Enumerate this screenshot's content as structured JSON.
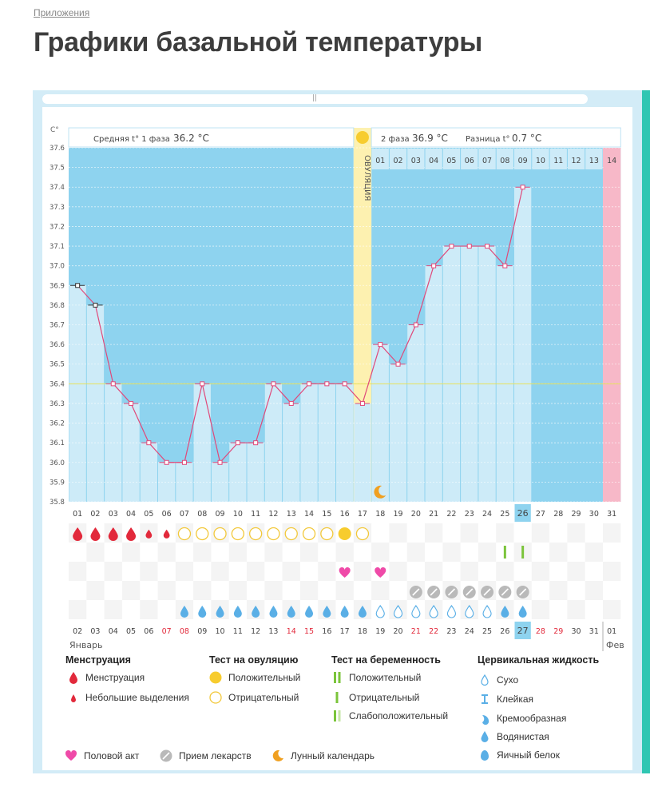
{
  "breadcrumb": "Приложения",
  "page_title": "Графики базальной температуры",
  "chart_data": {
    "type": "line",
    "y_unit": "C°",
    "ylim": [
      35.8,
      37.6
    ],
    "y_ticks": [
      "37.6",
      "37.5",
      "37.4",
      "37.3",
      "37.2",
      "37.1",
      "37.0",
      "36.9",
      "36.8",
      "36.7",
      "36.6",
      "36.5",
      "36.4",
      "36.3",
      "36.2",
      "36.1",
      "36.0",
      "35.9",
      "35.8"
    ],
    "cycle_days": [
      "01",
      "02",
      "03",
      "04",
      "05",
      "06",
      "07",
      "08",
      "09",
      "10",
      "11",
      "12",
      "13",
      "14",
      "15",
      "16",
      "17",
      "18",
      "19",
      "20",
      "21",
      "22",
      "23",
      "24",
      "25",
      "26",
      "27",
      "28",
      "29",
      "30",
      "31"
    ],
    "highlight_cycle_day": "26",
    "temperatures": [
      36.9,
      36.8,
      36.4,
      36.3,
      36.1,
      36.0,
      36.0,
      36.4,
      36.0,
      36.1,
      36.1,
      36.4,
      36.3,
      36.4,
      36.4,
      36.4,
      36.3,
      36.6,
      36.5,
      36.7,
      37.0,
      37.1,
      37.1,
      37.1,
      37.0,
      37.4
    ],
    "coverline": 36.4,
    "phase1_label": "Средняя t° 1 фаза",
    "phase1_value": "36.2 °С",
    "phase2_label": "2 фаза",
    "phase2_value": "36.9 °С",
    "diff_label": "Разница t°",
    "diff_value": "0.7 °С",
    "ovulation_label": "ОВУЛЯЦИЯ",
    "luteal_days": [
      "01",
      "02",
      "03",
      "04",
      "05",
      "06",
      "07",
      "08",
      "09",
      "10",
      "11",
      "12",
      "13",
      "14"
    ],
    "luteal_highlight_day": "14",
    "menstruation": [
      "big",
      "big",
      "big",
      "big",
      "small",
      "small"
    ],
    "ovulation_test": [
      "neg",
      "neg",
      "neg",
      "neg",
      "neg",
      "neg",
      "neg",
      "neg",
      "neg",
      "pos",
      "neg"
    ],
    "pregnancy_test_days": [
      25,
      26
    ],
    "intercourse_days": [
      16,
      18
    ],
    "medication_days": [
      20,
      21,
      22,
      23,
      24,
      25,
      26
    ],
    "cervical_watery_days": [
      7,
      8,
      9,
      10,
      11,
      12,
      13,
      14,
      15,
      16,
      17
    ],
    "cervical_dry_days": [
      18,
      19,
      20,
      21,
      22,
      23,
      24
    ],
    "cervical_creamy_days": [
      25,
      26
    ],
    "moon_day": 18,
    "calendar_dates": [
      "02",
      "03",
      "04",
      "05",
      "06",
      "07",
      "08",
      "09",
      "10",
      "11",
      "12",
      "13",
      "14",
      "15",
      "16",
      "17",
      "18",
      "19",
      "20",
      "21",
      "22",
      "23",
      "24",
      "25",
      "26",
      "27",
      "28",
      "29",
      "30",
      "31",
      "01"
    ],
    "calendar_red": [
      "07",
      "08",
      "14",
      "15",
      "21",
      "22",
      "28",
      "29"
    ],
    "calendar_highlight": "27",
    "month_start": "Январь",
    "month_next": "Фев"
  },
  "legend": {
    "menstruation": {
      "title": "Менструация",
      "items": [
        "Менструация",
        "Небольшие выделения"
      ]
    },
    "ovulation_test": {
      "title": "Тест на овуляцию",
      "items": [
        "Положительный",
        "Отрицательный"
      ]
    },
    "pregnancy_test": {
      "title": "Тест на беременность",
      "items": [
        "Положительный",
        "Отрицательный",
        "Слабоположительный"
      ]
    },
    "cervical": {
      "title": "Цервикальная жидкость",
      "items": [
        "Сухо",
        "Клейкая",
        "Кремообразная",
        "Водянистая",
        "Яичный белок"
      ]
    },
    "bottom": [
      "Половой акт",
      "Прием лекарств",
      "Лунный календарь"
    ]
  },
  "colors": {
    "phase": "#8ed3ef",
    "bar": "#cdebf8",
    "line": "#e0497a",
    "ovulation": "#fdf1b0",
    "highlight": "#f7b8c8",
    "teal": "#2fc6b2",
    "red": "#e2293b",
    "drop": "#5aafe6"
  }
}
